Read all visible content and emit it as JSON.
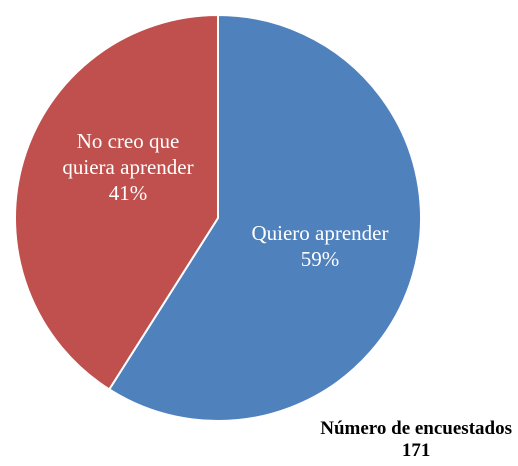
{
  "chart_data": {
    "type": "pie",
    "slices": [
      {
        "label_lines": [
          "Quiero aprender",
          "59%"
        ],
        "value": 59,
        "color": "#4F81BD"
      },
      {
        "label_lines": [
          "No creo que",
          "quiera aprender",
          "41%"
        ],
        "value": 41,
        "color": "#C0504D"
      }
    ],
    "start_angle_deg": 0,
    "direction": "clockwise"
  },
  "footnote": {
    "title": "Número de encuestados",
    "count": "171"
  }
}
